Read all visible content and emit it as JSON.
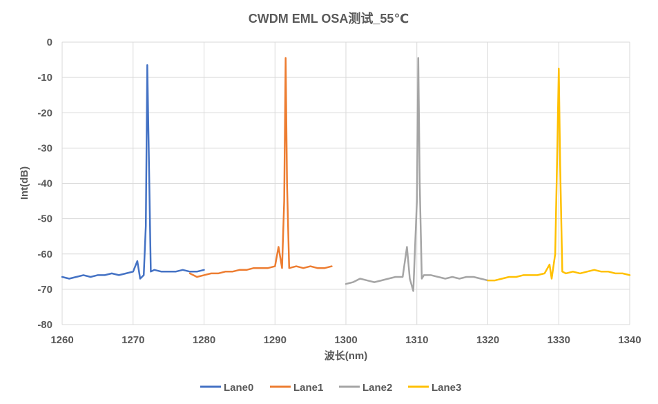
{
  "chart_data": {
    "type": "line",
    "title": "CWDM EML OSA测试_55℃",
    "xlabel": "波长(nm)",
    "ylabel": "Int(dB)",
    "xlim": [
      1260,
      1340
    ],
    "ylim": [
      -80,
      0
    ],
    "x_ticks": [
      1260,
      1270,
      1280,
      1290,
      1300,
      1310,
      1320,
      1330,
      1340
    ],
    "y_ticks": [
      0,
      -10,
      -20,
      -30,
      -40,
      -50,
      -60,
      -70,
      -80
    ],
    "grid": true,
    "legend_position": "bottom",
    "series": [
      {
        "name": "Lane0",
        "color": "#4472C4",
        "x": [
          1260,
          1261,
          1262,
          1263,
          1264,
          1265,
          1266,
          1267,
          1268,
          1269,
          1270,
          1270.6,
          1271,
          1271.5,
          1271.8,
          1272,
          1272.2,
          1272.5,
          1273,
          1274,
          1275,
          1276,
          1277,
          1278,
          1279,
          1280
        ],
        "y": [
          -66.5,
          -67,
          -66.5,
          -66,
          -66.5,
          -66,
          -66,
          -65.5,
          -66,
          -65.5,
          -65,
          -62,
          -67,
          -66,
          -52,
          -6.5,
          -30,
          -65,
          -64.5,
          -65,
          -65,
          -65,
          -64.5,
          -65,
          -65,
          -64.5
        ]
      },
      {
        "name": "Lane1",
        "color": "#ED7D31",
        "x": [
          1278,
          1279,
          1280,
          1281,
          1282,
          1283,
          1284,
          1285,
          1286,
          1287,
          1288,
          1289,
          1290,
          1290.5,
          1291,
          1291.3,
          1291.5,
          1291.7,
          1292,
          1293,
          1294,
          1295,
          1296,
          1297,
          1298
        ],
        "y": [
          -65.5,
          -66.5,
          -66,
          -65.5,
          -65.5,
          -65,
          -65,
          -64.5,
          -64.5,
          -64,
          -64,
          -64,
          -63.5,
          -58,
          -64,
          -45,
          -4.5,
          -40,
          -64,
          -63.5,
          -64,
          -63.5,
          -64,
          -64,
          -63.5
        ]
      },
      {
        "name": "Lane2",
        "color": "#A5A5A5",
        "x": [
          1300,
          1301,
          1302,
          1303,
          1304,
          1305,
          1306,
          1307,
          1308,
          1308.6,
          1309,
          1309.5,
          1310,
          1310.2,
          1310.4,
          1310.7,
          1311,
          1312,
          1313,
          1314,
          1315,
          1316,
          1317,
          1318,
          1319,
          1320
        ],
        "y": [
          -68.5,
          -68,
          -67,
          -67.5,
          -68,
          -67.5,
          -67,
          -66.5,
          -66.5,
          -58,
          -67,
          -70.5,
          -45,
          -4.5,
          -40,
          -67,
          -66,
          -66,
          -66.5,
          -67,
          -66.5,
          -67,
          -66.5,
          -66.5,
          -67,
          -67.5
        ]
      },
      {
        "name": "Lane3",
        "color": "#FFC000",
        "x": [
          1320,
          1321,
          1322,
          1323,
          1324,
          1325,
          1326,
          1327,
          1328,
          1328.7,
          1329,
          1329.5,
          1329.8,
          1330,
          1330.2,
          1330.5,
          1331,
          1332,
          1333,
          1334,
          1335,
          1336,
          1337,
          1338,
          1339,
          1340
        ],
        "y": [
          -67.5,
          -67.5,
          -67,
          -66.5,
          -66.5,
          -66,
          -66,
          -66,
          -65.5,
          -63,
          -67,
          -60,
          -30,
          -7.5,
          -35,
          -65,
          -65.5,
          -65,
          -65.5,
          -65,
          -64.5,
          -65,
          -65,
          -65.5,
          -65.5,
          -66
        ]
      }
    ]
  }
}
